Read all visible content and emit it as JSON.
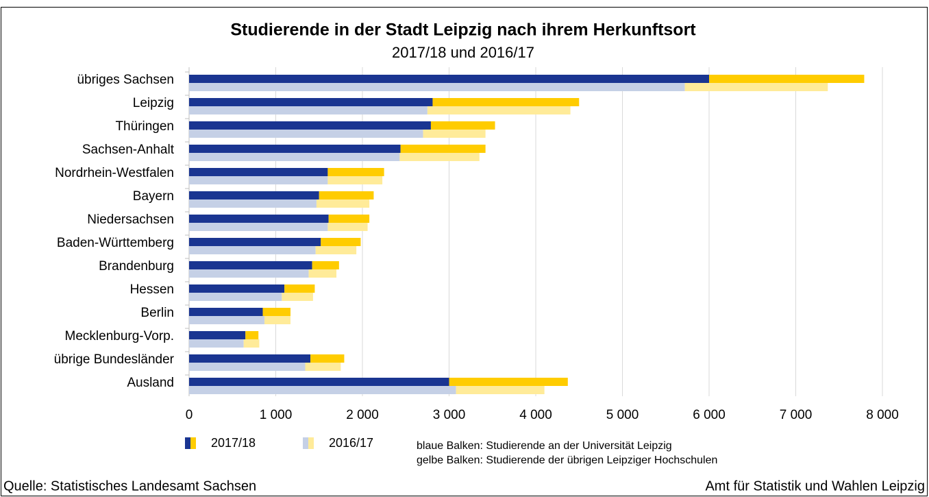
{
  "chart_data": {
    "type": "stacked-barh-pairs",
    "title": "Studierende in der Stadt Leipzig nach ihrem Herkunftsort",
    "subtitle": "2017/18 und 2016/17",
    "categories": [
      "übriges Sachsen",
      "Leipzig",
      "Thüringen",
      "Sachsen-Anhalt",
      "Nordrhein-Westfalen",
      "Bayern",
      "Niedersachsen",
      "Baden-Württemberg",
      "Brandenburg",
      "Hessen",
      "Berlin",
      "Mecklenburg-Vorp.",
      "übrige Bundesländer",
      "Ausland"
    ],
    "series": [
      {
        "name": "2017/18",
        "segments": [
          {
            "color": "#1a3591",
            "values": [
              6000,
              2810,
              2790,
              2440,
              1600,
              1500,
              1610,
              1520,
              1420,
              1100,
              850,
              650,
              1400,
              3000
            ]
          },
          {
            "color": "#ffcc00",
            "values": [
              1790,
              1690,
              740,
              980,
              650,
              630,
              470,
              460,
              310,
              350,
              320,
              150,
              390,
              1370
            ]
          }
        ]
      },
      {
        "name": "2016/17",
        "segments": [
          {
            "color": "#c5d0e6",
            "values": [
              5720,
              2750,
              2700,
              2430,
              1600,
              1470,
              1600,
              1460,
              1380,
              1070,
              870,
              630,
              1340,
              3080
            ]
          },
          {
            "color": "#ffeb99",
            "values": [
              1650,
              1650,
              720,
              920,
              630,
              610,
              460,
              470,
              320,
              360,
              300,
              180,
              410,
              1020
            ]
          }
        ]
      }
    ],
    "xlim": [
      0,
      8000
    ],
    "xticks": [
      0,
      {
        "value": 1000,
        "label": "1 000"
      },
      {
        "value": 2000,
        "label": "2 000"
      },
      {
        "value": 3000,
        "label": "3 000"
      },
      {
        "value": 4000,
        "label": "4 000"
      },
      {
        "value": 5000,
        "label": "5 000"
      },
      {
        "value": 6000,
        "label": "6 000"
      },
      {
        "value": 7000,
        "label": "7 000"
      },
      {
        "value": 8000,
        "label": "8 000"
      }
    ],
    "grid": true,
    "notes": [
      "blaue Balken: Studierende an der Universität Leipzig",
      "gelbe Balken: Studierende der übrigen Leipziger Hochschulen"
    ],
    "source": "Quelle: Statistisches Landesamt Sachsen",
    "author": "Amt für Statistik und Wahlen Leipzig"
  }
}
